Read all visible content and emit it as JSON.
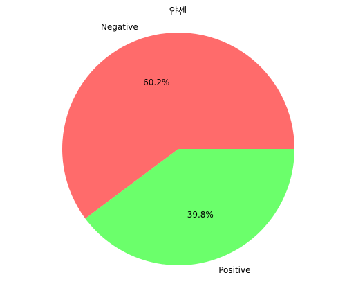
{
  "chart_data": {
    "type": "pie",
    "title": "얀센",
    "labels": [
      "Negative",
      "Positive"
    ],
    "values": [
      60.2,
      39.8
    ],
    "percent_labels": [
      "60.2%",
      "39.8%"
    ],
    "colors": [
      "#ff6b6b",
      "#6bff6b"
    ],
    "start_angle_deg": 0,
    "direction": "counterclockwise",
    "legend": "none"
  }
}
